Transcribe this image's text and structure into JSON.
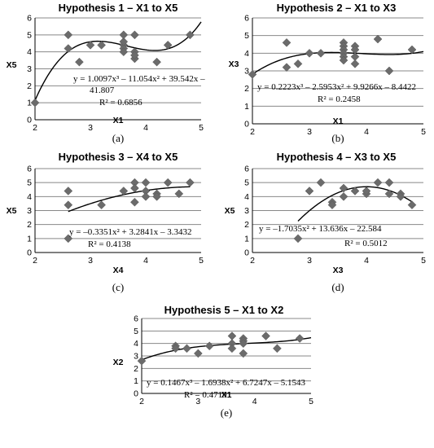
{
  "chart_data": [
    {
      "type": "scatter",
      "title": "Hypothesis 1 – X1 to X5",
      "xlabel": "X1",
      "ylabel": "X5",
      "xlim": [
        2,
        5
      ],
      "ylim": [
        0,
        6
      ],
      "xticks": [
        2,
        3,
        4,
        5
      ],
      "yticks": [
        0,
        1,
        2,
        3,
        4,
        5,
        6
      ],
      "grid": "horizontal",
      "points": [
        [
          2,
          1
        ],
        [
          2.6,
          5
        ],
        [
          2.6,
          4.2
        ],
        [
          2.8,
          3.4
        ],
        [
          3,
          4.4
        ],
        [
          3.2,
          4.4
        ],
        [
          3.6,
          4.4
        ],
        [
          3.6,
          4.2
        ],
        [
          3.6,
          4
        ],
        [
          3.6,
          4.6
        ],
        [
          3.6,
          5
        ],
        [
          3.8,
          5
        ],
        [
          3.8,
          4
        ],
        [
          3.8,
          3.6
        ],
        [
          3.8,
          3.8
        ],
        [
          4.2,
          3.4
        ],
        [
          4.4,
          4.4
        ],
        [
          4.8,
          5
        ]
      ],
      "trendline": {
        "kind": "poly3",
        "coef": [
          -41.807,
          39.542,
          -11.054,
          1.0097
        ]
      },
      "equation": "y = 1.0097x³ – 11.054x² + 39.542x –",
      "equation2": "41.807",
      "r2": "R² = 0.6856",
      "caption": "(a)"
    },
    {
      "type": "scatter",
      "title": "Hypothesis 2 – X1 to X3",
      "xlabel": "X1",
      "ylabel": "X3",
      "xlim": [
        2,
        5
      ],
      "ylim": [
        0,
        6
      ],
      "xticks": [
        2,
        3,
        4,
        5
      ],
      "yticks": [
        0,
        1,
        2,
        3,
        4,
        5,
        6
      ],
      "grid": "horizontal",
      "points": [
        [
          2,
          2.8
        ],
        [
          2.6,
          4.6
        ],
        [
          2.6,
          3.2
        ],
        [
          2.8,
          3.4
        ],
        [
          3,
          4
        ],
        [
          3.2,
          4
        ],
        [
          3.6,
          4.6
        ],
        [
          3.6,
          4.4
        ],
        [
          3.6,
          4.2
        ],
        [
          3.6,
          4
        ],
        [
          3.6,
          3.8
        ],
        [
          3.6,
          3.6
        ],
        [
          3.8,
          4.4
        ],
        [
          3.8,
          4.2
        ],
        [
          3.8,
          3.8
        ],
        [
          3.8,
          3.4
        ],
        [
          4.2,
          4.8
        ],
        [
          4.4,
          3
        ],
        [
          4.8,
          4.2
        ]
      ],
      "trendline": {
        "kind": "poly3",
        "coef": [
          -8.4422,
          9.9266,
          -2.5953,
          0.2223
        ]
      },
      "equation": "y = 0.2223x³ – 2.5953x² + 9.9266x – 8.4422",
      "r2": "R² = 0.2458",
      "caption": "(b)"
    },
    {
      "type": "scatter",
      "title": "Hypothesis 3 – X4 to X5",
      "xlabel": "X4",
      "ylabel": "X5",
      "xlim": [
        2,
        5
      ],
      "ylim": [
        0,
        6
      ],
      "xticks": [
        2,
        3,
        4,
        5
      ],
      "yticks": [
        0,
        1,
        2,
        3,
        4,
        5,
        6
      ],
      "grid": "horizontal",
      "points": [
        [
          2.6,
          4.4
        ],
        [
          2.6,
          3.4
        ],
        [
          2.6,
          1
        ],
        [
          3.2,
          3.4
        ],
        [
          3.6,
          4.4
        ],
        [
          3.8,
          5
        ],
        [
          3.8,
          4.6
        ],
        [
          3.8,
          3.6
        ],
        [
          4,
          5
        ],
        [
          4,
          4.4
        ],
        [
          4,
          4
        ],
        [
          4.2,
          4.2
        ],
        [
          4.2,
          4
        ],
        [
          4.4,
          5
        ],
        [
          4.6,
          4.2
        ],
        [
          4.8,
          5
        ]
      ],
      "trendline": {
        "kind": "poly2",
        "xrange": [
          2.6,
          4.8
        ],
        "coef": [
          -3.3432,
          3.2841,
          -0.3351
        ]
      },
      "equation": "y = –0.3351x² + 3.2841x – 3.3432",
      "r2": "R² = 0.4138",
      "caption": "(c)"
    },
    {
      "type": "scatter",
      "title": "Hypothesis 4 – X3 to X5",
      "xlabel": "X3",
      "ylabel": "X5",
      "xlim": [
        2,
        5
      ],
      "ylim": [
        0,
        6
      ],
      "xticks": [
        2,
        3,
        4,
        5
      ],
      "yticks": [
        0,
        1,
        2,
        3,
        4,
        5,
        6
      ],
      "grid": "horizontal",
      "points": [
        [
          2.8,
          1
        ],
        [
          3,
          4.4
        ],
        [
          3.2,
          5
        ],
        [
          3.4,
          3.6
        ],
        [
          3.4,
          3.4
        ],
        [
          3.6,
          4.6
        ],
        [
          3.6,
          4
        ],
        [
          3.8,
          4.4
        ],
        [
          4,
          4.2
        ],
        [
          4,
          4.4
        ],
        [
          4.2,
          5
        ],
        [
          4.4,
          5
        ],
        [
          4.4,
          4.2
        ],
        [
          4.6,
          4.2
        ],
        [
          4.6,
          4
        ],
        [
          4.8,
          3.4
        ]
      ],
      "trendline": {
        "kind": "poly2",
        "xrange": [
          2.8,
          4.8
        ],
        "coef": [
          -22.584,
          13.636,
          -1.7035
        ]
      },
      "equation": "y = –1.7035x² + 13.636x – 22.584",
      "r2": "R² = 0.5012",
      "caption": "(d)"
    },
    {
      "type": "scatter",
      "title": "Hypothesis 5 – X1 to X2",
      "xlabel": "X1",
      "ylabel": "X2",
      "xlim": [
        2,
        5
      ],
      "ylim": [
        0,
        6
      ],
      "xticks": [
        2,
        3,
        4,
        5
      ],
      "yticks": [
        0,
        1,
        2,
        3,
        4,
        5,
        6
      ],
      "grid": "horizontal",
      "points": [
        [
          2,
          2.6
        ],
        [
          2.6,
          3.8
        ],
        [
          2.6,
          3.6
        ],
        [
          2.8,
          3.6
        ],
        [
          3,
          3.2
        ],
        [
          3.2,
          3.8
        ],
        [
          3.6,
          4.6
        ],
        [
          3.6,
          4
        ],
        [
          3.6,
          3.6
        ],
        [
          3.8,
          4.4
        ],
        [
          3.8,
          4.2
        ],
        [
          3.8,
          4
        ],
        [
          3.8,
          3.2
        ],
        [
          4.2,
          4.6
        ],
        [
          4.4,
          3.6
        ],
        [
          4.8,
          4.4
        ]
      ],
      "trendline": {
        "kind": "poly3",
        "coef": [
          -5.1543,
          6.7247,
          -1.6938,
          0.1467
        ]
      },
      "equation": "y = 0.1467x³ – 1.6938x² + 6.7247x – 5.1543",
      "r2": "R² = 0.4719",
      "caption": "(e)"
    }
  ]
}
